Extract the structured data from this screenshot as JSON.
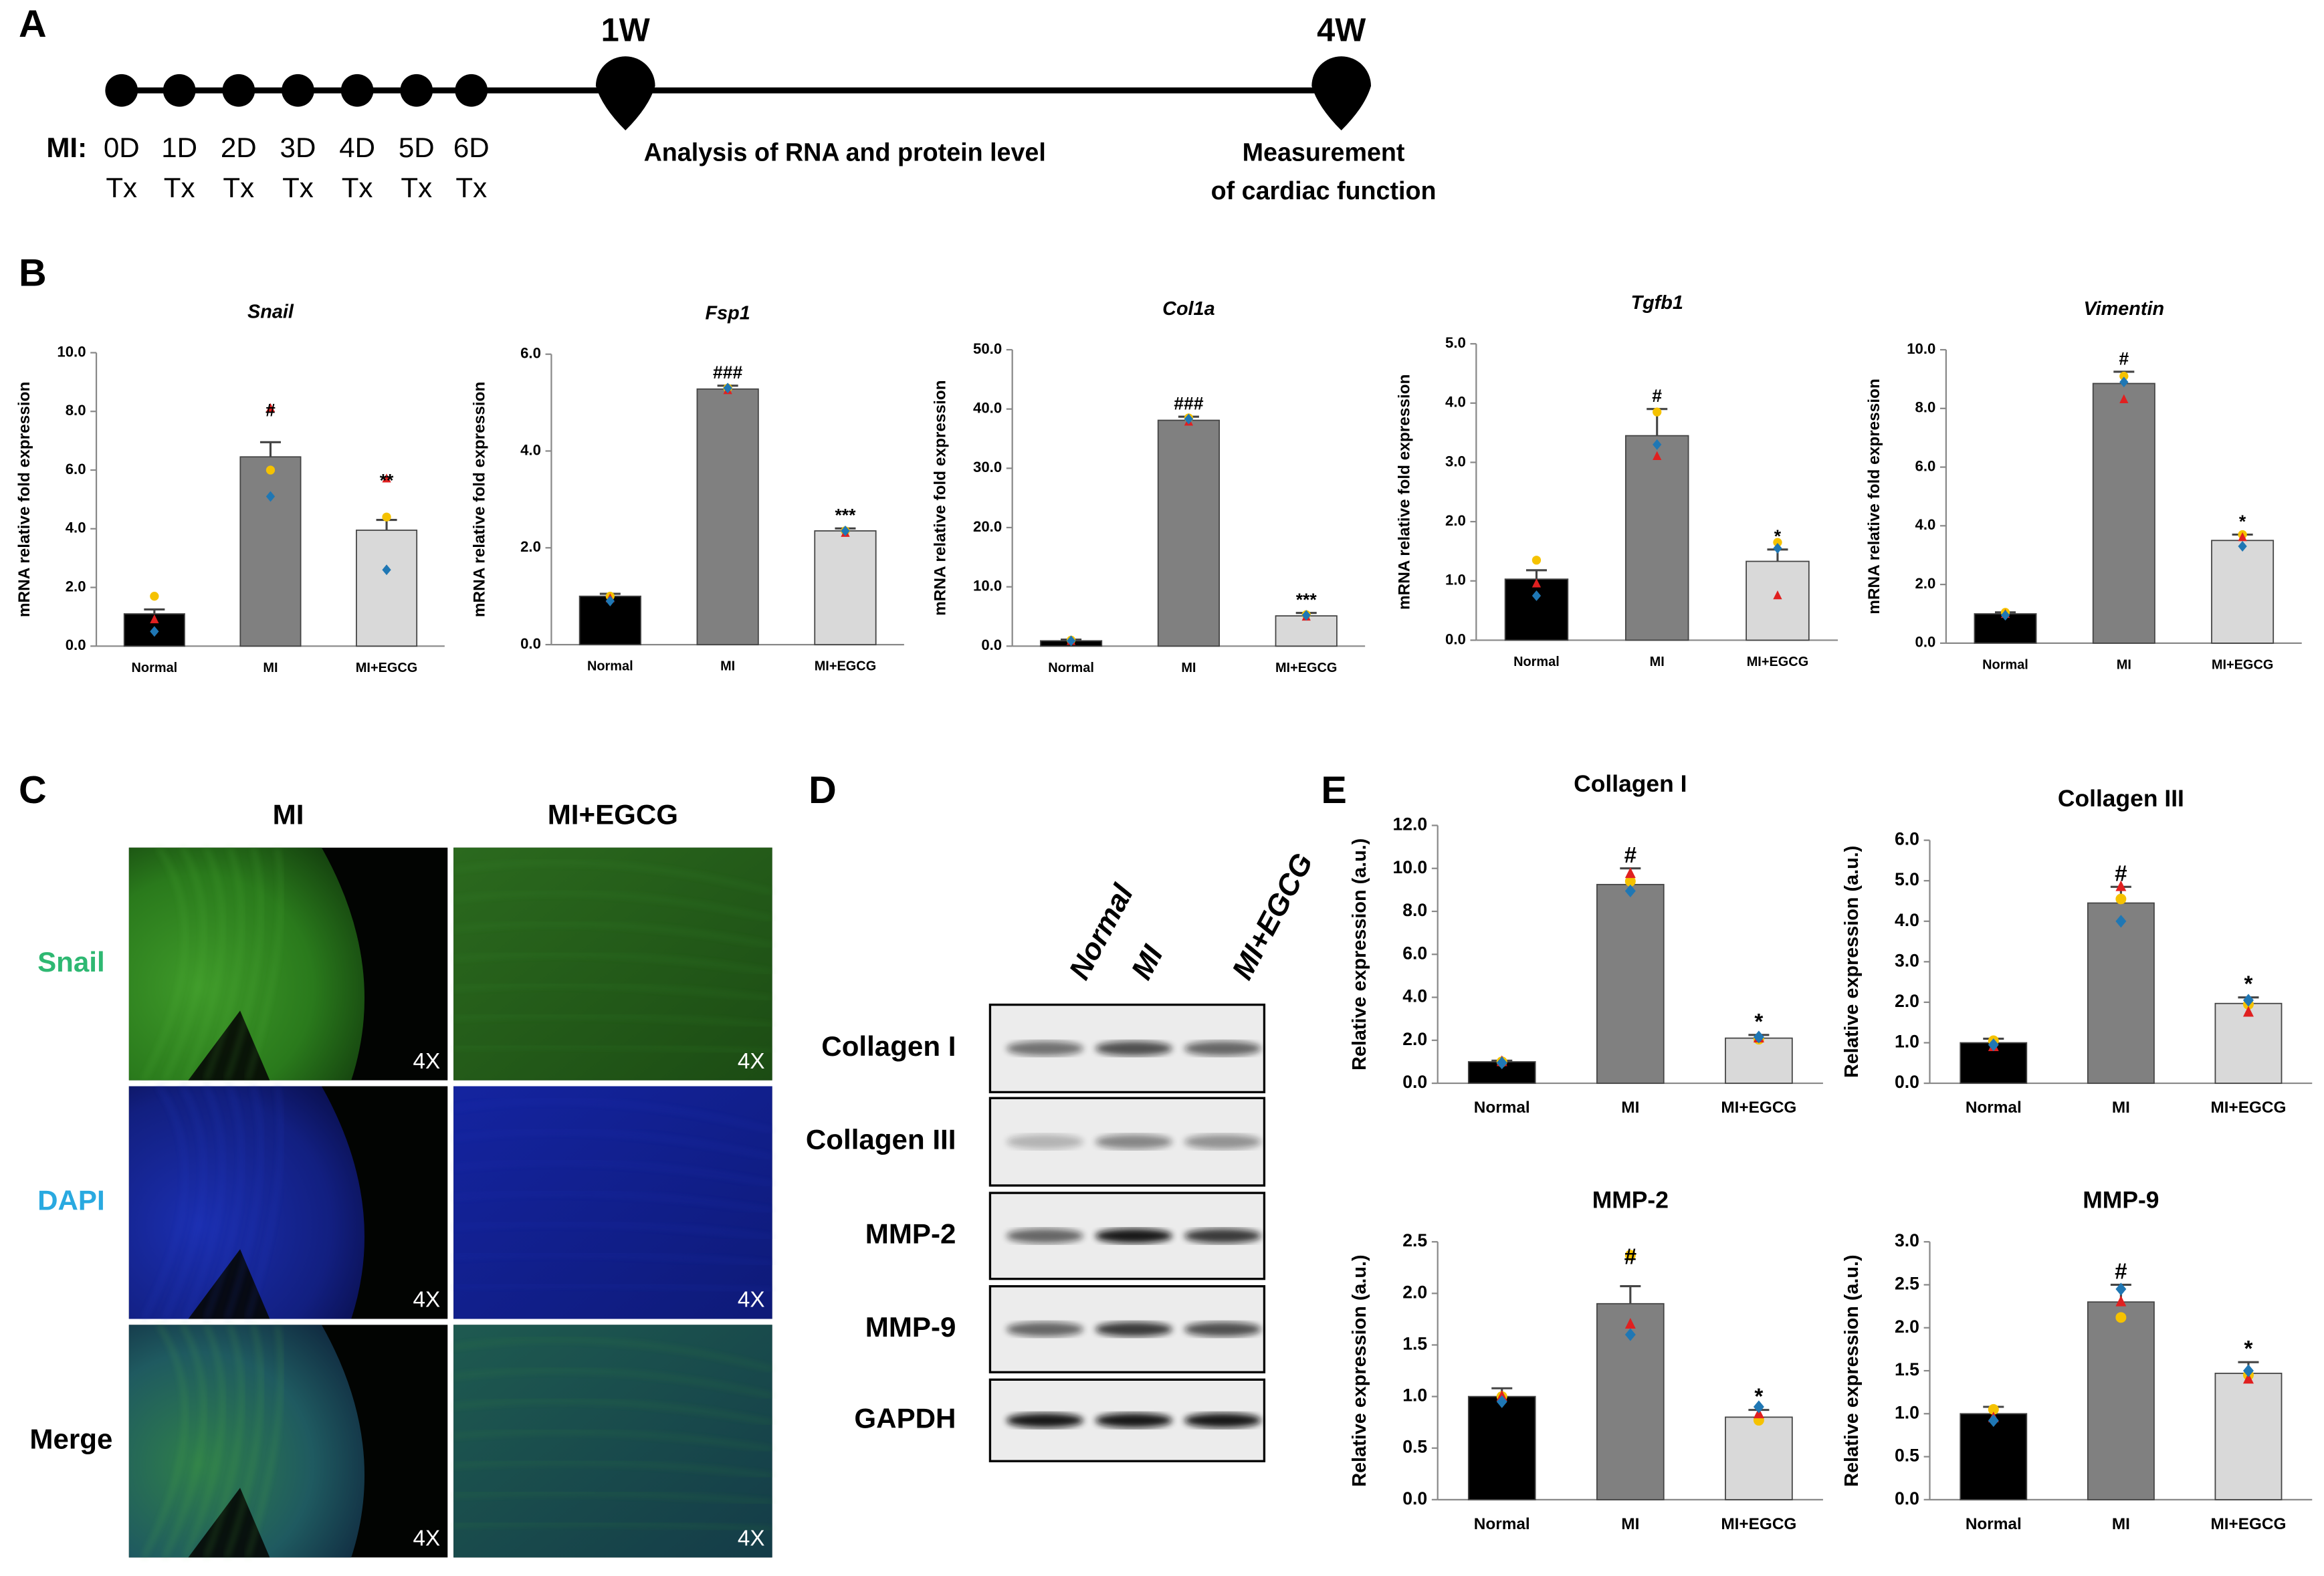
{
  "panel_labels": [
    "A",
    "B",
    "C",
    "D",
    "E"
  ],
  "timeline": {
    "group_label": "MI:",
    "days": [
      "0D",
      "1D",
      "2D",
      "3D",
      "4D",
      "5D",
      "6D"
    ],
    "treatment": "Tx",
    "milestones": [
      {
        "label": "1W",
        "description": [
          "Analysis of RNA and protein level"
        ]
      },
      {
        "label": "4W",
        "description": [
          "Measurement",
          "of cardiac function"
        ]
      }
    ]
  },
  "immunofluorescence": {
    "columns": [
      "MI",
      "MI+EGCG"
    ],
    "rows": [
      "Snail",
      "DAPI",
      "Merge"
    ],
    "row_colors": [
      "#2eb872",
      "#29a9e0",
      "#000000"
    ],
    "magnification": "4X"
  },
  "western_blot": {
    "lanes": [
      "Normal",
      "MI",
      "MI+EGCG"
    ],
    "proteins": [
      "Collagen I",
      "Collagen III",
      "MMP-2",
      "MMP-9",
      "GAPDH"
    ]
  },
  "chart_data": [
    {
      "type": "bar",
      "title": "Snail",
      "title_italic": true,
      "ylabel": "mRNA relative fold  expression",
      "categories": [
        "Normal",
        "MI",
        "MI+EGCG"
      ],
      "values": [
        1.1,
        6.45,
        3.95
      ],
      "errors": [
        0.15,
        0.5,
        0.35
      ],
      "colors": [
        "#000000",
        "#808080",
        "#d9d9d9"
      ],
      "significance": [
        null,
        "#",
        "**"
      ],
      "points": [
        [
          1.7,
          0.9,
          0.5
        ],
        [
          6.0,
          8.1,
          5.1
        ],
        [
          4.4,
          5.7,
          2.6
        ]
      ],
      "point_colors": [
        "#f5c200",
        "#e02020",
        "#1f77b4"
      ],
      "point_markers": [
        "circle",
        "triangle",
        "diamond"
      ],
      "ylim": [
        0,
        10
      ],
      "yticks": [
        {
          "value": 0,
          "label": "0.0"
        },
        {
          "value": 2,
          "label": "2.0"
        },
        {
          "value": 4,
          "label": "4.0"
        },
        {
          "value": 6,
          "label": "6.0"
        },
        {
          "value": 8,
          "label": "8.0"
        },
        {
          "value": 10,
          "label": "10.0"
        }
      ]
    },
    {
      "type": "bar",
      "title": "Fsp1",
      "title_italic": true,
      "ylabel": "mRNA relative fold expression",
      "categories": [
        "Normal",
        "MI",
        "MI+EGCG"
      ],
      "values": [
        1.0,
        5.28,
        2.35
      ],
      "errors": [
        0.05,
        0.07,
        0.05
      ],
      "colors": [
        "#000000",
        "#808080",
        "#d9d9d9"
      ],
      "significance": [
        null,
        "###",
        "***"
      ],
      "points": [
        [
          1.0,
          0.95,
          0.9
        ],
        [
          5.3,
          5.25,
          5.3
        ],
        [
          2.35,
          2.3,
          2.35
        ]
      ],
      "point_colors": [
        "#f5c200",
        "#e02020",
        "#1f77b4"
      ],
      "point_markers": [
        "circle",
        "triangle",
        "diamond"
      ],
      "ylim": [
        0,
        6
      ],
      "yticks": [
        {
          "value": 0,
          "label": "0.0"
        },
        {
          "value": 2,
          "label": "2.0"
        },
        {
          "value": 4,
          "label": "4.0"
        },
        {
          "value": 6,
          "label": "6.0"
        }
      ]
    },
    {
      "type": "bar",
      "title": "Col1a",
      "title_italic": true,
      "ylabel": "mRNA relative fold expression",
      "categories": [
        "Normal",
        "MI",
        "MI+EGCG"
      ],
      "values": [
        0.9,
        38.1,
        5.1
      ],
      "errors": [
        0.2,
        0.6,
        0.5
      ],
      "colors": [
        "#000000",
        "#808080",
        "#d9d9d9"
      ],
      "significance": [
        null,
        "###",
        "***"
      ],
      "points": [
        [
          1.0,
          0.8,
          0.9
        ],
        [
          38.5,
          37.8,
          38.3
        ],
        [
          5.3,
          4.9,
          5.2
        ]
      ],
      "point_colors": [
        "#f5c200",
        "#e02020",
        "#1f77b4"
      ],
      "point_markers": [
        "circle",
        "triangle",
        "diamond"
      ],
      "ylim": [
        0,
        50
      ],
      "yticks": [
        {
          "value": 0,
          "label": "0.0"
        },
        {
          "value": 10,
          "label": "10.0"
        },
        {
          "value": 20,
          "label": "20.0"
        },
        {
          "value": 30,
          "label": "30.0"
        },
        {
          "value": 40,
          "label": "40.0"
        },
        {
          "value": 50,
          "label": "50.0"
        }
      ]
    },
    {
      "type": "bar",
      "title": "Tgfb1",
      "title_italic": true,
      "ylabel": "mRNA relative fold expression",
      "categories": [
        "Normal",
        "MI",
        "MI+EGCG"
      ],
      "values": [
        1.03,
        3.45,
        1.33
      ],
      "errors": [
        0.15,
        0.45,
        0.2
      ],
      "colors": [
        "#000000",
        "#808080",
        "#d9d9d9"
      ],
      "significance": [
        null,
        "#",
        "*"
      ],
      "points": [
        [
          1.35,
          0.95,
          0.75
        ],
        [
          3.85,
          3.1,
          3.3
        ],
        [
          1.65,
          0.75,
          1.55
        ]
      ],
      "point_colors": [
        "#f5c200",
        "#e02020",
        "#1f77b4"
      ],
      "point_markers": [
        "circle",
        "triangle",
        "diamond"
      ],
      "ylim": [
        0,
        5
      ],
      "yticks": [
        {
          "value": 0,
          "label": "0.0"
        },
        {
          "value": 1,
          "label": "1.0"
        },
        {
          "value": 2,
          "label": "2.0"
        },
        {
          "value": 3,
          "label": "3.0"
        },
        {
          "value": 4,
          "label": "4.0"
        },
        {
          "value": 5,
          "label": "5.0"
        }
      ]
    },
    {
      "type": "bar",
      "title": "Vimentin",
      "title_italic": true,
      "ylabel": "mRNA relative fold expression",
      "categories": [
        "Normal",
        "MI",
        "MI+EGCG"
      ],
      "values": [
        1.0,
        8.85,
        3.5
      ],
      "errors": [
        0.05,
        0.4,
        0.2
      ],
      "colors": [
        "#000000",
        "#808080",
        "#d9d9d9"
      ],
      "significance": [
        null,
        "#",
        "*"
      ],
      "points": [
        [
          1.05,
          0.98,
          0.95
        ],
        [
          9.1,
          8.3,
          8.9
        ],
        [
          3.7,
          3.6,
          3.3
        ]
      ],
      "point_colors": [
        "#f5c200",
        "#e02020",
        "#1f77b4"
      ],
      "point_markers": [
        "circle",
        "triangle",
        "diamond"
      ],
      "ylim": [
        0,
        10
      ],
      "yticks": [
        {
          "value": 0,
          "label": "0.0"
        },
        {
          "value": 2,
          "label": "2.0"
        },
        {
          "value": 4,
          "label": "4.0"
        },
        {
          "value": 6,
          "label": "6.0"
        },
        {
          "value": 8,
          "label": "8.0"
        },
        {
          "value": 10,
          "label": "10.0"
        }
      ]
    },
    {
      "type": "bar",
      "title": "Collagen I",
      "title_italic": false,
      "ylabel": "Relative expression (a.u.)",
      "categories": [
        "Normal",
        "MI",
        "MI+EGCG"
      ],
      "values": [
        1.0,
        9.25,
        2.1
      ],
      "errors": [
        0.05,
        0.75,
        0.15
      ],
      "colors": [
        "#000000",
        "#808080",
        "#d9d9d9"
      ],
      "significance": [
        null,
        "#",
        "*"
      ],
      "points": [
        [
          1.0,
          1.0,
          0.95
        ],
        [
          9.4,
          9.75,
          8.95
        ],
        [
          2.05,
          2.1,
          2.15
        ]
      ],
      "point_colors": [
        "#f5c200",
        "#e02020",
        "#1f77b4"
      ],
      "point_markers": [
        "circle",
        "triangle",
        "diamond"
      ],
      "ylim": [
        0,
        12
      ],
      "yticks": [
        {
          "value": 0,
          "label": "0.0"
        },
        {
          "value": 2,
          "label": "2.0"
        },
        {
          "value": 4,
          "label": "4.0"
        },
        {
          "value": 6,
          "label": "6.0"
        },
        {
          "value": 8,
          "label": "8.0"
        },
        {
          "value": 10,
          "label": "10.0"
        },
        {
          "value": 12,
          "label": "12.0"
        }
      ]
    },
    {
      "type": "bar",
      "title": "Collagen  III",
      "title_italic": false,
      "ylabel": "Relative expression (a.u.)",
      "categories": [
        "Normal",
        "MI",
        "MI+EGCG"
      ],
      "values": [
        1.0,
        4.45,
        1.97
      ],
      "errors": [
        0.1,
        0.4,
        0.15
      ],
      "colors": [
        "#000000",
        "#808080",
        "#d9d9d9"
      ],
      "significance": [
        null,
        "#",
        "*"
      ],
      "points": [
        [
          1.05,
          0.9,
          0.95
        ],
        [
          4.55,
          4.85,
          4.0
        ],
        [
          1.95,
          1.75,
          2.05
        ]
      ],
      "point_colors": [
        "#f5c200",
        "#e02020",
        "#1f77b4"
      ],
      "point_markers": [
        "circle",
        "triangle",
        "diamond"
      ],
      "ylim": [
        0,
        6
      ],
      "yticks": [
        {
          "value": 0,
          "label": "0.0"
        },
        {
          "value": 1,
          "label": "1.0"
        },
        {
          "value": 2,
          "label": "2.0"
        },
        {
          "value": 3,
          "label": "3.0"
        },
        {
          "value": 4,
          "label": "4.0"
        },
        {
          "value": 5,
          "label": "5.0"
        },
        {
          "value": 6,
          "label": "6.0"
        }
      ]
    },
    {
      "type": "bar",
      "title": "MMP-2",
      "title_italic": false,
      "ylabel": "Relative expression (a.u.)",
      "categories": [
        "Normal",
        "MI",
        "MI+EGCG"
      ],
      "values": [
        1.0,
        1.9,
        0.8
      ],
      "errors": [
        0.08,
        0.17,
        0.07
      ],
      "colors": [
        "#000000",
        "#808080",
        "#d9d9d9"
      ],
      "significance": [
        null,
        "#",
        "*"
      ],
      "points": [
        [
          1.0,
          1.0,
          0.95
        ],
        [
          2.37,
          1.7,
          1.6
        ],
        [
          0.77,
          0.83,
          0.9
        ]
      ],
      "point_colors": [
        "#f5c200",
        "#e02020",
        "#1f77b4"
      ],
      "point_markers": [
        "circle",
        "triangle",
        "diamond"
      ],
      "ylim": [
        0,
        2.5
      ],
      "yticks": [
        {
          "value": 0,
          "label": "0.0"
        },
        0.5,
        {
          "value": 1,
          "label": "1.0"
        },
        1.5,
        {
          "value": 2,
          "label": "2.0"
        },
        2.5
      ]
    },
    {
      "type": "bar",
      "title": "MMP-9",
      "title_italic": false,
      "ylabel": "Relative expression (a.u.)",
      "categories": [
        "Normal",
        "MI",
        "MI+EGCG"
      ],
      "values": [
        1.0,
        2.3,
        1.47
      ],
      "errors": [
        0.08,
        0.2,
        0.13
      ],
      "colors": [
        "#000000",
        "#808080",
        "#d9d9d9"
      ],
      "significance": [
        null,
        "#",
        "*"
      ],
      "points": [
        [
          1.05,
          0.95,
          0.92
        ],
        [
          2.12,
          2.3,
          2.45
        ],
        [
          1.45,
          1.4,
          1.5
        ]
      ],
      "point_colors": [
        "#f5c200",
        "#e02020",
        "#1f77b4"
      ],
      "point_markers": [
        "circle",
        "triangle",
        "diamond"
      ],
      "ylim": [
        0,
        3
      ],
      "yticks": [
        {
          "value": 0,
          "label": "0.0"
        },
        0.5,
        {
          "value": 1,
          "label": "1.0"
        },
        1.5,
        {
          "value": 2,
          "label": "2.0"
        },
        2.5,
        {
          "value": 3,
          "label": "3.0"
        }
      ]
    }
  ]
}
